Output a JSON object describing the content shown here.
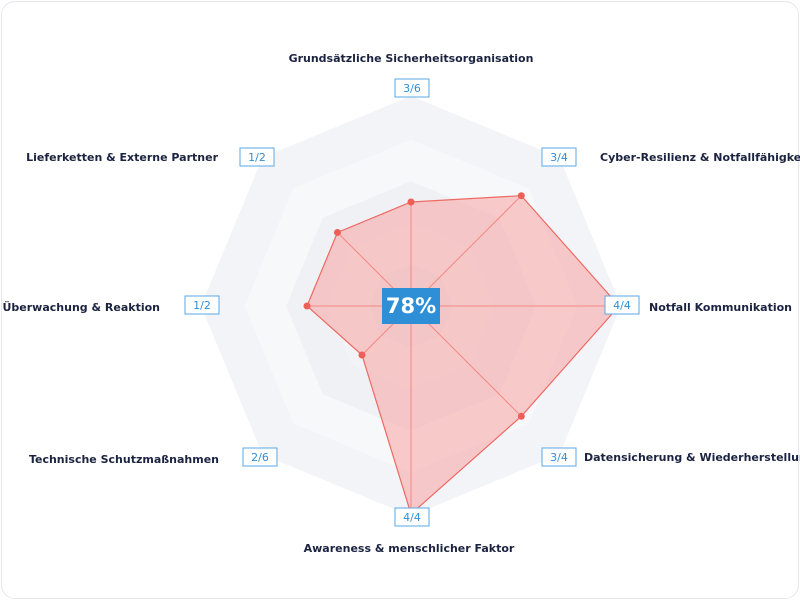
{
  "chart_data": {
    "type": "radar",
    "center_value": "78%",
    "axes": [
      {
        "label": "Grundsätzliche Sicherheitsorganisation",
        "score_text": "3/6",
        "value": 0.5
      },
      {
        "label": "Cyber-Resilienz & Notfallfähigkeit",
        "score_text": "3/4",
        "value": 0.75
      },
      {
        "label": "Notfall Kommunikation",
        "score_text": "4/4",
        "value": 1.0
      },
      {
        "label": "Datensicherung & Wiederherstellung",
        "score_text": "3/4",
        "value": 0.75
      },
      {
        "label": "Awareness & menschlicher Faktor",
        "score_text": "4/4",
        "value": 1.0
      },
      {
        "label": "Technische Schutzmaßnahmen",
        "score_text": "2/6",
        "value": 0.3333
      },
      {
        "label": "Überwachung & Reaktion",
        "score_text": "1/2",
        "value": 0.5
      },
      {
        "label": "Lieferketten & Externe Partner",
        "score_text": "1/2",
        "value": 0.5
      }
    ],
    "range": [
      0,
      1
    ],
    "colors": {
      "fill": "#f7a3a0",
      "stroke": "#ef6a63",
      "point": "#ee5f57",
      "ring_a": "#f3f4f8",
      "ring_b": "#e9ebf2",
      "badge_border": "#5aa9e6",
      "badge_text": "#2f8fd6",
      "center_bg": "#2f8fd6"
    }
  }
}
